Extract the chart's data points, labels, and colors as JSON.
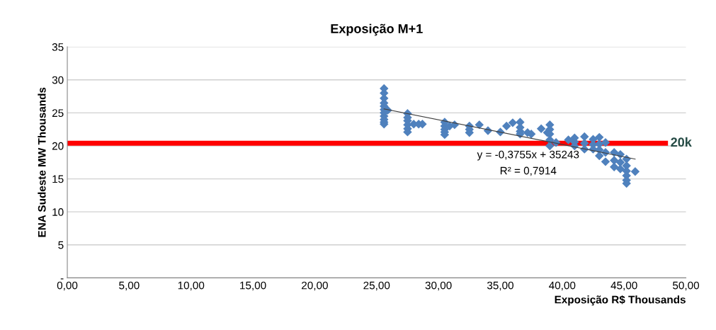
{
  "chart_data": {
    "type": "scatter",
    "title": "Exposição M+1",
    "xlabel": "Exposição R$ Thousands",
    "ylabel": "ENA Sudeste MW Thousands",
    "xlim": [
      0,
      50
    ],
    "xticks": [
      {
        "value": 0,
        "label": "0,00"
      },
      {
        "value": 5,
        "label": "5,00"
      },
      {
        "value": 10,
        "label": "10,00"
      },
      {
        "value": 15,
        "label": "15,00"
      },
      {
        "value": 20,
        "label": "20,00"
      },
      {
        "value": 25,
        "label": "25,00"
      },
      {
        "value": 30,
        "label": "30,00"
      },
      {
        "value": 35,
        "label": "35,00"
      },
      {
        "value": 40,
        "label": "40,00"
      },
      {
        "value": 45,
        "label": "45,00"
      },
      {
        "value": 50,
        "label": "50,00"
      }
    ],
    "ylim": [
      0,
      35
    ],
    "yticks": [
      {
        "value": 0,
        "label": "-"
      },
      5,
      10,
      15,
      20,
      25,
      30,
      35
    ],
    "grid": "y",
    "series": [
      {
        "marker": "diamond",
        "color": "#4f81bd",
        "x": [
          25.6,
          25.6,
          25.6,
          25.6,
          25.6,
          25.6,
          25.6,
          25.6,
          25.6,
          25.6,
          25.6,
          25.9,
          27.5,
          27.5,
          27.5,
          27.5,
          27.5,
          27.5,
          28.0,
          28.4,
          28.7,
          30.5,
          30.5,
          30.5,
          30.5,
          30.5,
          30.9,
          31.3,
          32.5,
          32.5,
          32.5,
          33.3,
          34.0,
          35.0,
          35.5,
          36.0,
          36.6,
          36.6,
          36.6,
          36.6,
          37.2,
          37.5,
          38.3,
          38.8,
          39.0,
          39.0,
          39.0,
          39.0,
          39.0,
          39.5,
          40.5,
          41.0,
          41.0,
          41.0,
          41.8,
          41.8,
          41.8,
          42.5,
          42.5,
          42.5,
          43.0,
          43.0,
          43.0,
          43.0,
          43.5,
          43.5,
          43.5,
          44.2,
          44.2,
          44.2,
          44.7,
          44.7,
          44.7,
          45.2,
          45.2,
          45.2,
          45.2,
          45.2,
          45.2,
          45.9
        ],
        "values": [
          28.7,
          28.0,
          27.2,
          26.5,
          26.0,
          25.5,
          25.0,
          24.5,
          24.0,
          23.6,
          23.3,
          25.4,
          24.9,
          24.3,
          23.8,
          23.2,
          22.6,
          22.1,
          23.3,
          23.3,
          23.3,
          23.6,
          23.0,
          22.5,
          22.1,
          21.7,
          23.0,
          23.2,
          23.0,
          22.5,
          22.0,
          23.2,
          22.3,
          22.1,
          23.0,
          23.5,
          23.6,
          22.8,
          22.2,
          21.8,
          22.0,
          21.8,
          22.6,
          22.0,
          23.2,
          22.5,
          21.8,
          20.9,
          20.0,
          20.5,
          20.9,
          21.2,
          20.6,
          20.0,
          21.4,
          20.4,
          19.5,
          21.0,
          20.2,
          19.5,
          21.3,
          20.3,
          19.4,
          18.5,
          20.5,
          19.0,
          17.6,
          19.0,
          17.8,
          16.8,
          18.7,
          17.5,
          16.5,
          18.0,
          17.0,
          16.2,
          15.5,
          14.8,
          14.3,
          16.1
        ]
      },
      {
        "type": "line",
        "marker": "none",
        "color": "#404040",
        "x": [
          25.6,
          45.9
        ],
        "values": [
          25.6,
          18.0
        ]
      }
    ],
    "ref_lines": [
      {
        "axis": "y",
        "value": 20.4,
        "label": "20k",
        "color": "#ff0000"
      }
    ],
    "annotations": [
      "y = -0,3755x + 35243",
      "R² = 0,7914"
    ]
  }
}
